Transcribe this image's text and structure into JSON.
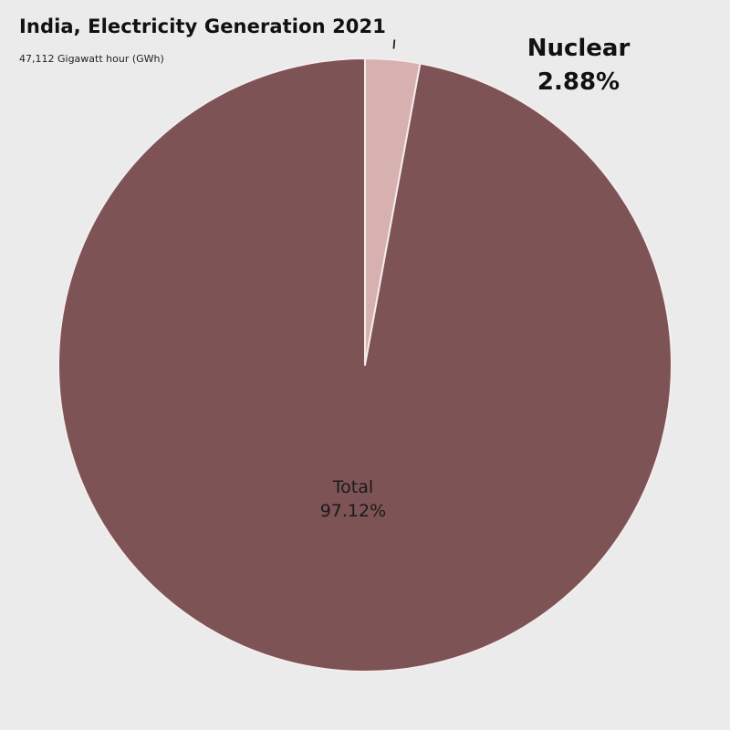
{
  "title": "India, Electricity Generation 2021",
  "subtitle": "47,112 Gigawatt hour (GWh)",
  "colors": {
    "background": "#ebebeb",
    "total": "#7d5355",
    "nuclear": "#d7b0b0",
    "separator": "#f4ecec"
  },
  "chart_data": {
    "type": "pie",
    "title": "India, Electricity Generation 2021",
    "subtitle": "47,112 Gigawatt hour (GWh)",
    "slices": [
      {
        "label": "Nuclear",
        "value": 2.88,
        "value_label": "2.88%"
      },
      {
        "label": "Total",
        "value": 97.12,
        "value_label": "97.12%"
      }
    ],
    "start_angle_deg": 0,
    "direction": "clockwise",
    "label_placement": {
      "Nuclear": "outside",
      "Total": "inside"
    }
  }
}
